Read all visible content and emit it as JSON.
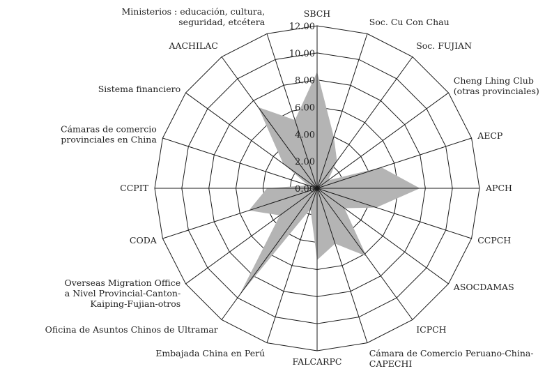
{
  "chart_data": {
    "type": "radar",
    "title": "",
    "categories": [
      "SBCH",
      "Soc. Cu Con Chau",
      "Soc. FUJIAN",
      "Cheng Lhing Club\n(otras provinciales)",
      "AECP",
      "APCH",
      "CCPCH",
      "ASOCDAMAS",
      "ICPCH",
      "Cámara de Comercio Peruano-China-\nCAPECHI",
      "FALCARPC",
      "Embajada China en Perú",
      "Oficina de Asuntos Chinos de Ultramar",
      "Overseas Migration Office\na Nivel Provincial-Canton-\nKaiping-Fujian-otros",
      "CODA",
      "CCPIT",
      "Cámaras de comercio\nprovinciales en China",
      "Sistema financiero",
      "AACHILAC",
      "Ministerios : educación, cultura,\nseguridad, etcétera"
    ],
    "series": [
      {
        "values": [
          8.6,
          4.0,
          2.5,
          1.0,
          5.0,
          7.6,
          4.6,
          2.5,
          6.2,
          4.3,
          5.3,
          1.6,
          9.8,
          3.4,
          5.3,
          3.7,
          0.7,
          3.1,
          7.4,
          5.3
        ],
        "color": "#b4b4b4"
      }
    ],
    "radial_ticks": [
      "0.00",
      "2.00",
      "4.00",
      "6.00",
      "8.00",
      "10.00",
      "12.00"
    ],
    "rmax": 12,
    "grid": true,
    "grid_color": "#1a1a1a",
    "fill_color": "#b4b4b4"
  }
}
